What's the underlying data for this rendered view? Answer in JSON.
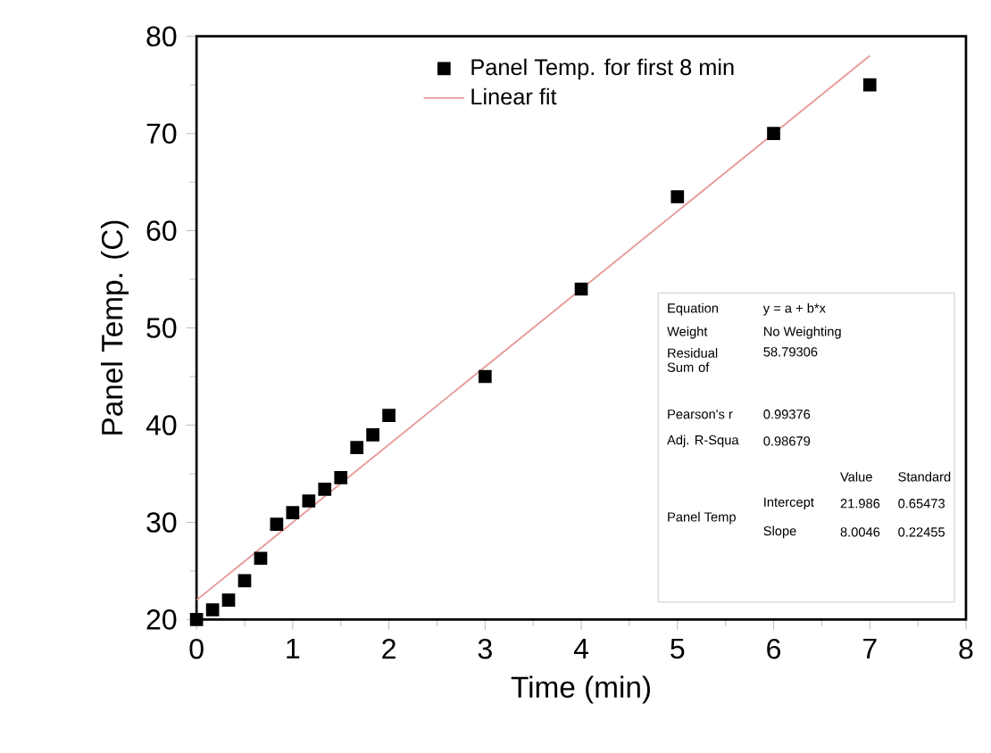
{
  "chart_data": {
    "type": "scatter",
    "xlabel": "Time (min)",
    "ylabel": "Panel Temp. (C)",
    "xlim": [
      0,
      8
    ],
    "ylim": [
      20,
      80
    ],
    "xticks": [
      0,
      1,
      2,
      3,
      4,
      5,
      6,
      7,
      8
    ],
    "yticks": [
      20,
      30,
      40,
      50,
      60,
      70,
      80
    ],
    "legend": "top",
    "grid": false,
    "series": [
      {
        "name": "Panel Temp. for first 8 min",
        "marker": "square",
        "color": "#000000",
        "x": [
          0,
          0.167,
          0.333,
          0.5,
          0.667,
          0.833,
          1,
          1.167,
          1.333,
          1.5,
          1.667,
          1.833,
          2,
          3,
          4,
          5,
          6,
          7
        ],
        "values": [
          20,
          21,
          22,
          24,
          26.3,
          29.8,
          31,
          32.2,
          33.4,
          34.6,
          37.7,
          39,
          41,
          45,
          54,
          63.5,
          70,
          75
        ]
      },
      {
        "name": "Linear fit",
        "type": "line",
        "marker": "none",
        "color": "#e89a9a",
        "x": [
          0,
          7
        ],
        "values": [
          22.0,
          78.0
        ]
      }
    ],
    "annotations": [
      "Equation",
      "y = a + b*x",
      "Weight",
      "No Weighting",
      "Residual Sum of",
      "58.79306",
      "Pearson's r",
      "0.99376",
      "Adj. R-Squa",
      "0.98679",
      "Value",
      "Standard",
      "Panel Temp",
      "Intercept",
      "21.986",
      "0.65473",
      "Slope",
      "8.0046",
      "0.22455"
    ]
  }
}
